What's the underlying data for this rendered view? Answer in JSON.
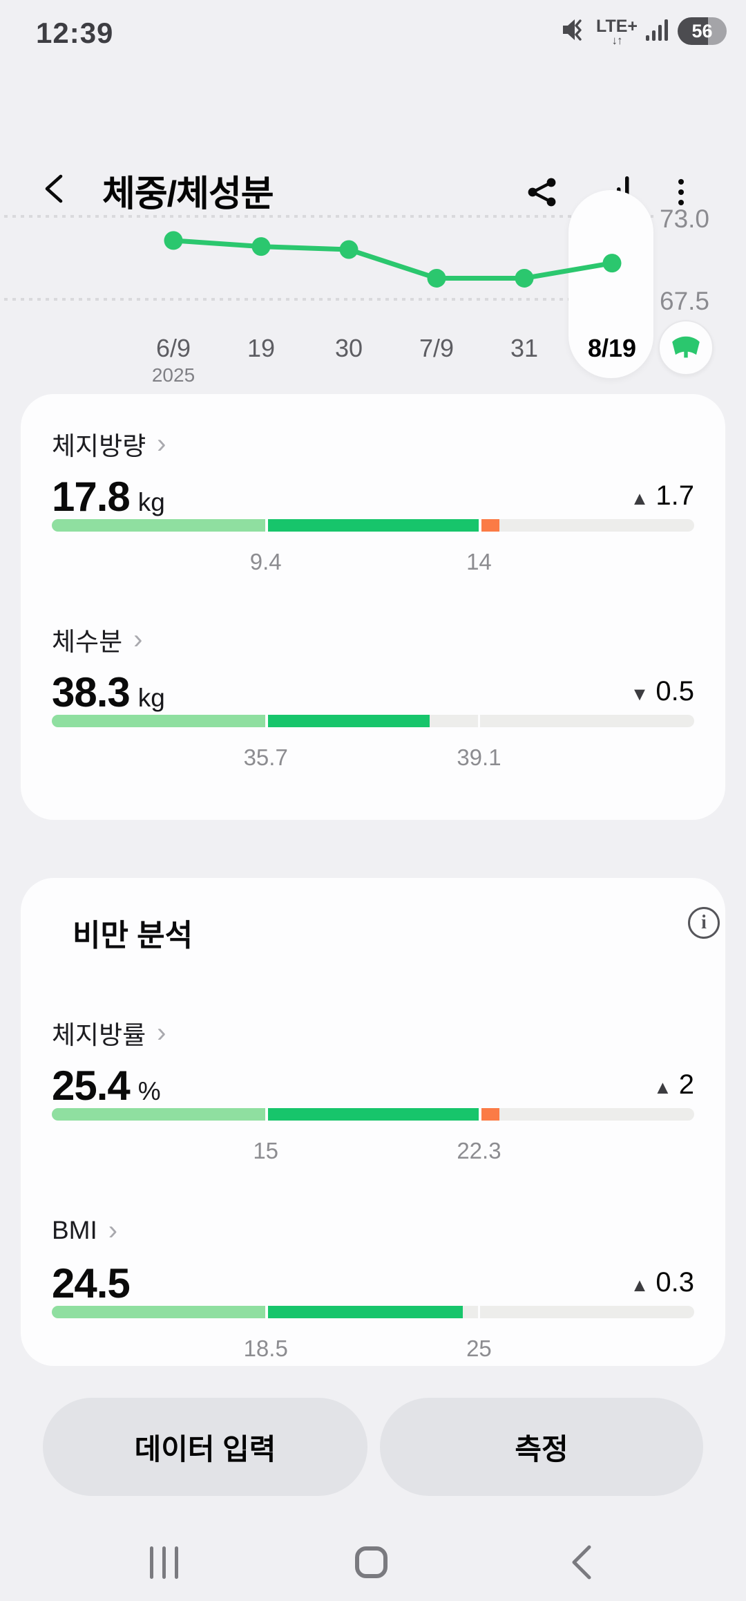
{
  "status_bar": {
    "time": "12:39",
    "network_label": "LTE+",
    "network_arrows": "↓↑",
    "battery_level": "56",
    "icons": [
      "volume-mute-icon",
      "lte-plus-indicator",
      "signal-strength-icon",
      "battery-indicator"
    ]
  },
  "header": {
    "title": "체중/체성분",
    "icons": [
      "back-icon",
      "share-icon",
      "stats-icon",
      "more-icon"
    ]
  },
  "chart": {
    "y_axis_labels": [
      "73.0",
      "67.5"
    ],
    "year_label": "2025",
    "scale_button_icon": "weight-scale-icon"
  },
  "chart_data": {
    "type": "line",
    "x": [
      "6/9",
      "19",
      "30",
      "7/9",
      "31",
      "8/19"
    ],
    "values": [
      71.4,
      71.0,
      70.8,
      68.9,
      68.9,
      69.9
    ],
    "unit": "kg",
    "y_gridlines": [
      73.0,
      67.5
    ],
    "ylim": [
      66.5,
      74.0
    ],
    "selected_index": 5,
    "grid": "dotted-horizontal",
    "legend": "none",
    "line_color": "#2bc76e"
  },
  "colors": {
    "accent_green": "#2bc76e",
    "bar_dark_green": "#17c56b",
    "bar_light_green": "#8fdfa0",
    "bar_alert_orange": "#fb7b46",
    "bar_track_gray": "#ededeb",
    "card_background": "#fdfdfe",
    "page_background": "#f0f0f3"
  },
  "measurement_card": {
    "metrics": [
      {
        "label": "체지방량",
        "value": "17.8",
        "unit": "kg",
        "change_glyph": "▲",
        "change_value": "1.7",
        "range_labels": [
          "9.4",
          "14"
        ],
        "segments": [
          [
            "light",
            33.2
          ],
          [
            "gap",
            0.5
          ],
          [
            "dark",
            32.8
          ],
          [
            "gap",
            0.4
          ],
          [
            "alert",
            2.8
          ],
          [
            "track",
            30.3
          ]
        ]
      },
      {
        "label": "체수분",
        "value": "38.3",
        "unit": "kg",
        "change_glyph": "▼",
        "change_value": "0.5",
        "range_labels": [
          "35.7",
          "39.1"
        ],
        "segments": [
          [
            "light",
            33.2
          ],
          [
            "gap",
            0.5
          ],
          [
            "dark",
            25.1
          ],
          [
            "track",
            7.5
          ],
          [
            "gap",
            0.4
          ],
          [
            "track",
            33.3
          ]
        ]
      }
    ]
  },
  "obesity_card": {
    "title": "비만 분석",
    "info_icon": "info-icon",
    "metrics": [
      {
        "label": "체지방률",
        "value": "25.4",
        "unit": "%",
        "change_glyph": "▲",
        "change_value": "2",
        "range_labels": [
          "15",
          "22.3"
        ],
        "segments": [
          [
            "light",
            33.2
          ],
          [
            "gap",
            0.5
          ],
          [
            "dark",
            32.8
          ],
          [
            "gap",
            0.4
          ],
          [
            "alert",
            2.8
          ],
          [
            "track",
            30.3
          ]
        ]
      },
      {
        "label": "BMI",
        "value": "24.5",
        "unit": "",
        "change_glyph": "▲",
        "change_value": "0.3",
        "range_labels": [
          "18.5",
          "25"
        ],
        "segments": [
          [
            "light",
            33.2
          ],
          [
            "gap",
            0.5
          ],
          [
            "dark",
            30.3
          ],
          [
            "track",
            2.3
          ],
          [
            "gap",
            0.4
          ],
          [
            "track",
            33.3
          ]
        ]
      }
    ]
  },
  "actions": {
    "input_label": "데이터 입력",
    "measure_label": "측정"
  },
  "navbar": {
    "icons": [
      "recents-icon",
      "home-icon",
      "back-icon"
    ]
  }
}
